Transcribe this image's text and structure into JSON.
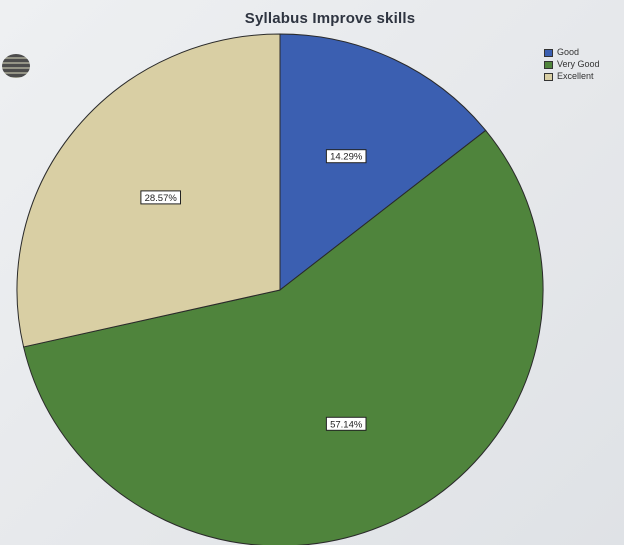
{
  "chart_data": {
    "type": "pie",
    "title": "Syllabus Improve skills",
    "categories": [
      "Good",
      "Very Good",
      "Excellent"
    ],
    "values": [
      14.29,
      57.14,
      28.57
    ],
    "data_labels": [
      "14.29%",
      "57.14%",
      "28.57%"
    ],
    "colors": [
      "#3b5fb1",
      "#4f843c",
      "#d9cfa4"
    ],
    "legend_position": "top-right",
    "start_angle": "12 o'clock",
    "direction": "clockwise"
  }
}
